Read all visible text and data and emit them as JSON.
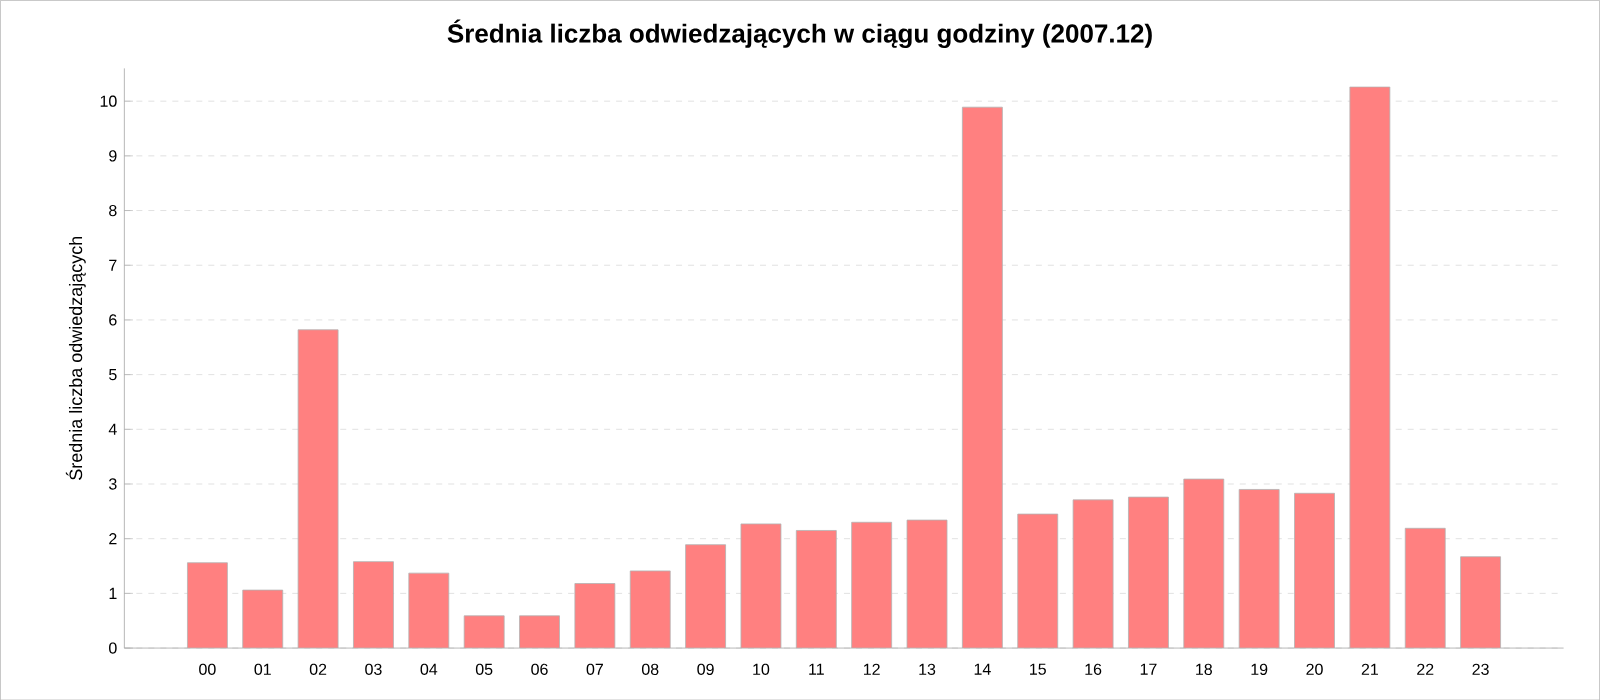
{
  "chart_data": {
    "type": "bar",
    "title": "Średnia liczba odwiedzających w ciągu godziny (2007.12)",
    "ylabel": "Średnia liczba odwiedzających",
    "categories": [
      "00",
      "01",
      "02",
      "03",
      "04",
      "05",
      "06",
      "07",
      "08",
      "09",
      "10",
      "11",
      "12",
      "13",
      "14",
      "15",
      "16",
      "17",
      "18",
      "19",
      "20",
      "21",
      "22",
      "23"
    ],
    "values": [
      1.56,
      1.06,
      5.82,
      1.58,
      1.37,
      0.59,
      0.59,
      1.18,
      1.41,
      1.89,
      2.27,
      2.15,
      2.3,
      2.34,
      9.89,
      2.45,
      2.71,
      2.76,
      3.09,
      2.9,
      2.83,
      10.26,
      2.19,
      1.67
    ],
    "color": "#ff8080",
    "ylim": [
      0,
      10.6
    ],
    "yticks": [
      0,
      1,
      2,
      3,
      4,
      5,
      6,
      7,
      8,
      9,
      10
    ],
    "grid": "y"
  }
}
